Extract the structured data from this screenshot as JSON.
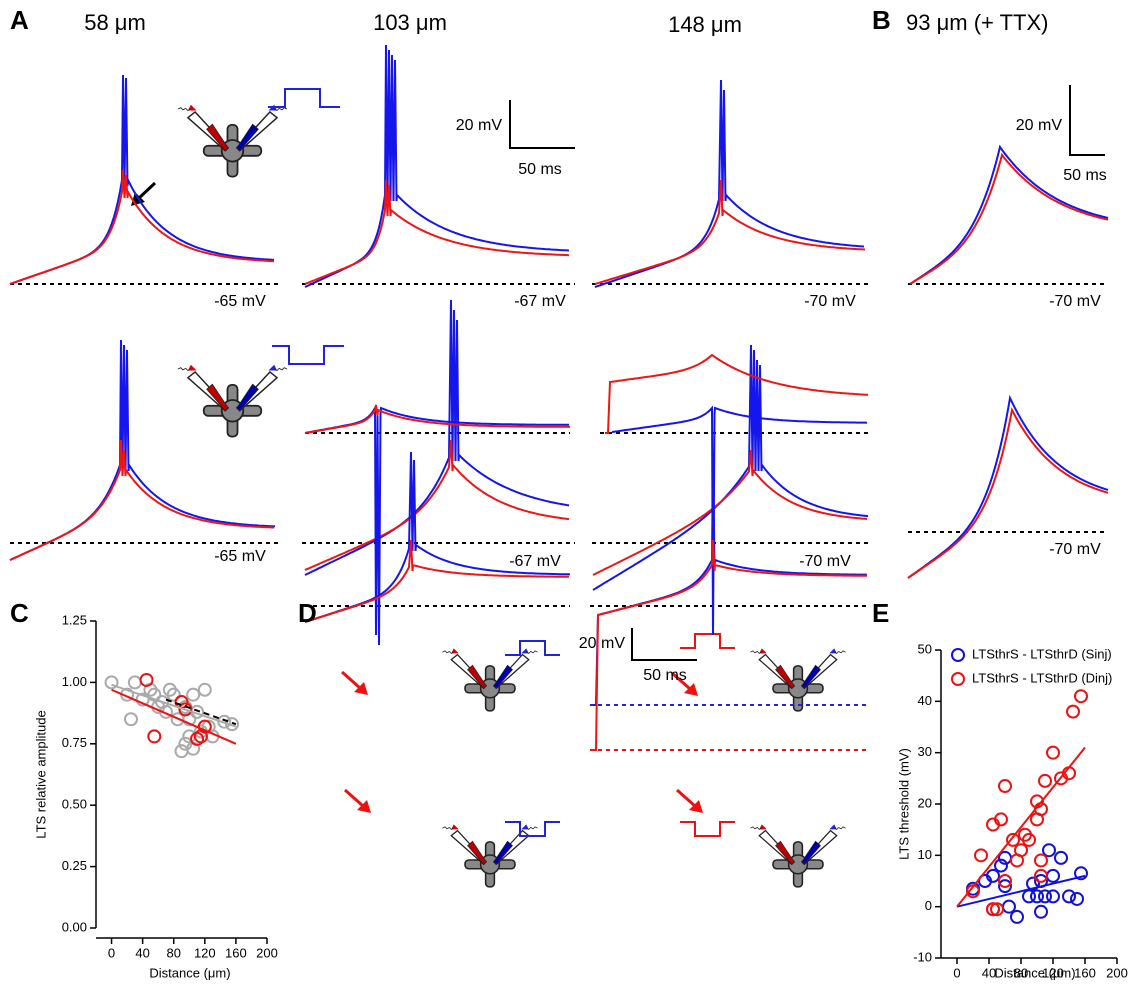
{
  "panel_labels": [
    "A",
    "B",
    "C",
    "D",
    "E"
  ],
  "panel_a": {
    "titles": [
      "58 μm",
      "103 μm",
      "148 μm"
    ],
    "scale_bar": {
      "voltage": "20 mV",
      "time": "50 ms"
    },
    "holding_top": [
      "-65 mV",
      "-67 mV",
      "-70 mV"
    ],
    "holding_bottom": [
      "-65 mV",
      "-67 mV",
      "-70 mV"
    ]
  },
  "panel_b": {
    "title": "93 μm (+ TTX)",
    "scale_bar": {
      "voltage": "20 mV",
      "time": "50 ms"
    },
    "holding_top": "-70 mV",
    "holding_bottom": "-70 mV"
  },
  "panel_d": {
    "scale_bar": {
      "voltage": "20 mV",
      "time": "50 ms"
    }
  },
  "chart_data": [
    {
      "type": "scatter",
      "y_label": "LTS relative amplitude",
      "x_label": "Distance (μm)",
      "xlim": [
        -20,
        200
      ],
      "ylim": [
        0,
        1.25
      ],
      "xticks": [
        0,
        40,
        80,
        120,
        160,
        200
      ],
      "yticks": [
        {
          "value": 0,
          "label": "0.00"
        },
        {
          "value": 0.25,
          "label": "0.25"
        },
        {
          "value": 0.5,
          "label": "0.50"
        },
        {
          "value": 0.75,
          "label": "0.75"
        },
        {
          "value": 1,
          "label": "1.00"
        },
        {
          "value": 1.25,
          "label": "1.25"
        }
      ],
      "series": [
        {
          "color": "#aaaaaa",
          "x": [
            0,
            20,
            30,
            25,
            40,
            50,
            55,
            60,
            65,
            70,
            75,
            80,
            85,
            90,
            95,
            100,
            100,
            105,
            110,
            115,
            120,
            125,
            130,
            145,
            155,
            95,
            105
          ],
          "values": [
            1.0,
            0.95,
            1.0,
            0.85,
            0.93,
            0.97,
            0.95,
            0.9,
            0.92,
            0.88,
            0.97,
            0.95,
            0.85,
            0.72,
            0.9,
            0.85,
            0.78,
            0.95,
            0.88,
            0.8,
            0.97,
            0.82,
            0.78,
            0.84,
            0.83,
            0.75,
            0.73
          ]
        },
        {
          "color": "#ee1111",
          "x": [
            45,
            55,
            90,
            95,
            115,
            120,
            110
          ],
          "values": [
            1.01,
            0.78,
            0.92,
            0.89,
            0.78,
            0.82,
            0.77
          ]
        }
      ],
      "fits": [
        {
          "color": "#aaaaaa",
          "dashed": false,
          "x": [
            0,
            160
          ],
          "values": [
            0.99,
            0.82
          ]
        },
        {
          "color": "#000000",
          "dashed": true,
          "x": [
            70,
            160
          ],
          "values": [
            0.93,
            0.83
          ]
        },
        {
          "color": "#ee1111",
          "dashed": false,
          "x": [
            0,
            160
          ],
          "values": [
            0.97,
            0.75
          ]
        }
      ]
    },
    {
      "type": "scatter",
      "y_label": "LTS threshold (mV)",
      "x_label": "Distance (μm)",
      "xlim": [
        -20,
        200
      ],
      "ylim": [
        -10,
        50
      ],
      "xticks": [
        0,
        40,
        80,
        120,
        160,
        200
      ],
      "yticks": [
        -10,
        0,
        10,
        20,
        30,
        40,
        50
      ],
      "series": [
        {
          "name": "LTSthrS - LTSthrD (Sinj)",
          "color": "#1111dd",
          "x": [
            20,
            35,
            45,
            55,
            60,
            65,
            75,
            60,
            95,
            100,
            105,
            105,
            110,
            115,
            120,
            120,
            130,
            140,
            150,
            155,
            45,
            90
          ],
          "values": [
            3.5,
            5,
            6,
            8,
            4,
            0,
            -2,
            9.5,
            4.5,
            2,
            5,
            -1,
            2,
            11,
            2,
            6,
            9.5,
            2,
            1.5,
            6.5,
            -0.5,
            2
          ]
        },
        {
          "name": "LTSthrS - LTSthrD (Dinj)",
          "color": "#ee1111",
          "x": [
            20,
            30,
            45,
            50,
            55,
            60,
            60,
            70,
            75,
            80,
            85,
            90,
            100,
            100,
            105,
            105,
            110,
            105,
            120,
            130,
            140,
            145,
            155,
            45
          ],
          "values": [
            3,
            10,
            16,
            -0.5,
            17,
            23.5,
            5,
            13,
            9,
            11,
            14,
            13,
            20.5,
            17,
            19,
            9,
            24.5,
            6,
            30,
            25,
            26,
            38,
            41,
            -0.5
          ]
        }
      ],
      "fits": [
        {
          "color": "#1111dd",
          "dashed": false,
          "x": [
            0,
            160
          ],
          "values": [
            0,
            6
          ]
        },
        {
          "color": "#ee1111",
          "dashed": false,
          "x": [
            0,
            160
          ],
          "values": [
            0,
            31
          ]
        }
      ]
    }
  ]
}
